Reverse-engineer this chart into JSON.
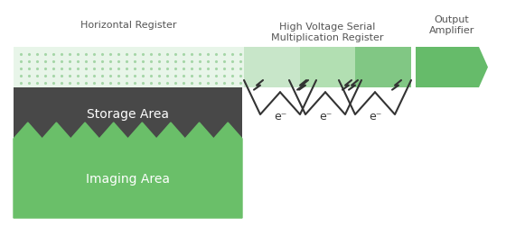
{
  "bg_color": "#ffffff",
  "imaging_area_color": "#6abf69",
  "storage_area_color": "#484848",
  "horiz_register_bg": "#e8f5e9",
  "horiz_register_dot_color": "#a5d6a7",
  "hvsr_col1": "#c8e6c9",
  "hvsr_col2": "#b2dfb2",
  "hvsr_col3": "#81c784",
  "output_amp_color": "#66bb6a",
  "text_color": "#555555",
  "mountain_color": "#333333",
  "label_imaging": "Imaging Area",
  "label_storage": "Storage Area",
  "label_horiz": "Horizontal Register",
  "label_hvsr": "High Voltage Serial\nMultiplication Register",
  "label_output": "Output\nAmplifier",
  "electron_symbol": "e⁻",
  "fig_width": 5.81,
  "fig_height": 2.53,
  "dpi": 100
}
